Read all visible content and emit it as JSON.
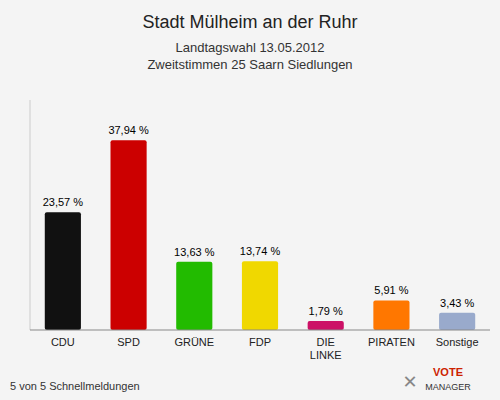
{
  "chart_data": {
    "type": "bar",
    "title": "Stadt Mülheim an der Ruhr",
    "subtitle": [
      "Landtagswahl 13.05.2012",
      "Zweitstimmen 25 Saarn Siedlungen"
    ],
    "annotations": [
      "5 von 5 Schnellmeldungen",
      "VOTE",
      "MANAGER",
      "✕"
    ],
    "categories": [
      "CDU",
      "SPD",
      "GRÜNE",
      "FDP",
      "DIE\nLINKE",
      "PIRATEN",
      "Sonstige"
    ],
    "values": [
      23.57,
      37.94,
      13.63,
      13.74,
      1.79,
      5.91,
      3.43
    ],
    "value_labels": [
      "23,57 %",
      "37,94 %",
      "13,63 %",
      "13,74 %",
      "1,79 %",
      "5,91 %",
      "3,43 %"
    ],
    "colors": [
      "#111111",
      "#cc0000",
      "#22bb00",
      "#f0d800",
      "#cc1166",
      "#ff7700",
      "#99aacc"
    ],
    "ylim": [
      0,
      46
    ],
    "grid": false,
    "data_labels": true,
    "tick_labels": "x"
  }
}
